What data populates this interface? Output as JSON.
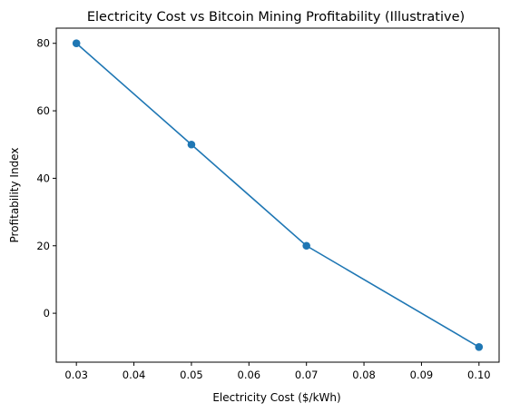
{
  "chart_data": {
    "type": "line",
    "title": "Electricity Cost vs Bitcoin Mining Profitability (Illustrative)",
    "xlabel": "Electricity Cost ($/kWh)",
    "ylabel": "Profitability Index",
    "xlim": [
      0.0265,
      0.1035
    ],
    "ylim": [
      -14.5,
      84.5
    ],
    "xticks": [
      0.03,
      0.04,
      0.05,
      0.06,
      0.07,
      0.08,
      0.09,
      0.1
    ],
    "xtick_labels": [
      "0.03",
      "0.04",
      "0.05",
      "0.06",
      "0.07",
      "0.08",
      "0.09",
      "0.10"
    ],
    "yticks": [
      0,
      20,
      40,
      60,
      80
    ],
    "ytick_labels": [
      "0",
      "20",
      "40",
      "60",
      "80"
    ],
    "grid": false,
    "series": [
      {
        "x": [
          0.03,
          0.05,
          0.07,
          0.1
        ],
        "y": [
          80,
          50,
          20,
          -10
        ],
        "color": "#1f77b4",
        "marker": "circle"
      }
    ]
  }
}
